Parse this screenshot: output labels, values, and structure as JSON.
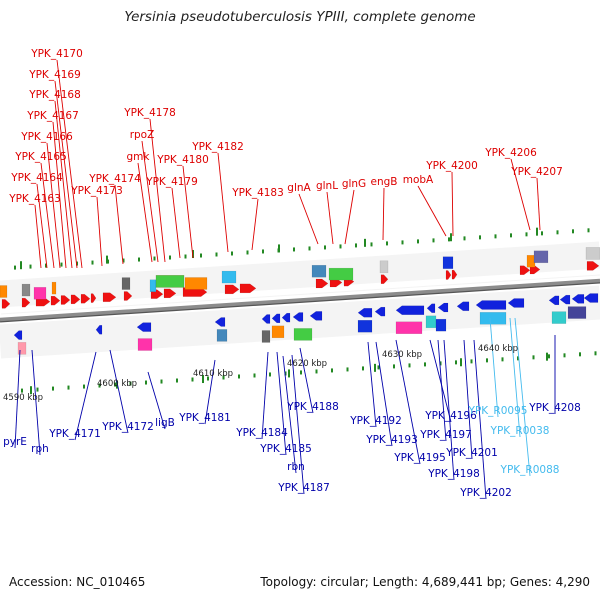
{
  "title": "Yersinia pseudotuberculosis YPIII, complete genome",
  "footer": {
    "accession": "Accession: NC_010465",
    "summary": "Topology: circular; Length: 4,689,441 bp; Genes: 4,290"
  },
  "colors": {
    "forward_label": "#dd0000",
    "reverse_label": "#0000aa",
    "rna_label": "#44bbee",
    "backbone": "#8c8c8c",
    "tick": "#228822"
  },
  "scale_labels": [
    {
      "text": "4590 kbp"
    },
    {
      "text": "4600 kbp"
    },
    {
      "text": "4610 kbp"
    },
    {
      "text": "4620 kbp"
    },
    {
      "text": "4630 kbp"
    },
    {
      "text": "4640 kbp"
    }
  ],
  "forward_labels": [
    {
      "text": "YPK_4170"
    },
    {
      "text": "YPK_4169"
    },
    {
      "text": "YPK_4168"
    },
    {
      "text": "YPK_4167"
    },
    {
      "text": "YPK_4166"
    },
    {
      "text": "YPK_4165"
    },
    {
      "text": "YPK_4164"
    },
    {
      "text": "YPK_4163"
    },
    {
      "text": "YPK_4173"
    },
    {
      "text": "YPK_4174"
    },
    {
      "text": "YPK_4178"
    },
    {
      "text": "rpoZ"
    },
    {
      "text": "gmk"
    },
    {
      "text": "YPK_4179"
    },
    {
      "text": "YPK_4180"
    },
    {
      "text": "YPK_4182"
    },
    {
      "text": "YPK_4183"
    },
    {
      "text": "glnA"
    },
    {
      "text": "glnL"
    },
    {
      "text": "glnG"
    },
    {
      "text": "engB"
    },
    {
      "text": "mobA"
    },
    {
      "text": "YPK_4200"
    },
    {
      "text": "YPK_4206"
    },
    {
      "text": "YPK_4207"
    }
  ],
  "reverse_labels": [
    {
      "text": "pyrE"
    },
    {
      "text": "rph"
    },
    {
      "text": "YPK_4171"
    },
    {
      "text": "YPK_4172"
    },
    {
      "text": "ligB"
    },
    {
      "text": "YPK_4181"
    },
    {
      "text": "YPK_4184"
    },
    {
      "text": "YPK_4185"
    },
    {
      "text": "rbn"
    },
    {
      "text": "YPK_4187"
    },
    {
      "text": "YPK_4188"
    },
    {
      "text": "YPK_4192"
    },
    {
      "text": "YPK_4193"
    },
    {
      "text": "YPK_4195"
    },
    {
      "text": "YPK_4196"
    },
    {
      "text": "YPK_4197"
    },
    {
      "text": "YPK_4198"
    },
    {
      "text": "YPK_4201"
    },
    {
      "text": "YPK_4202"
    },
    {
      "text": "YPK_4208"
    }
  ],
  "rna_labels": [
    {
      "text": "YPK_R0095"
    },
    {
      "text": "YPK_R0038"
    },
    {
      "text": "YPK_R0088"
    }
  ]
}
